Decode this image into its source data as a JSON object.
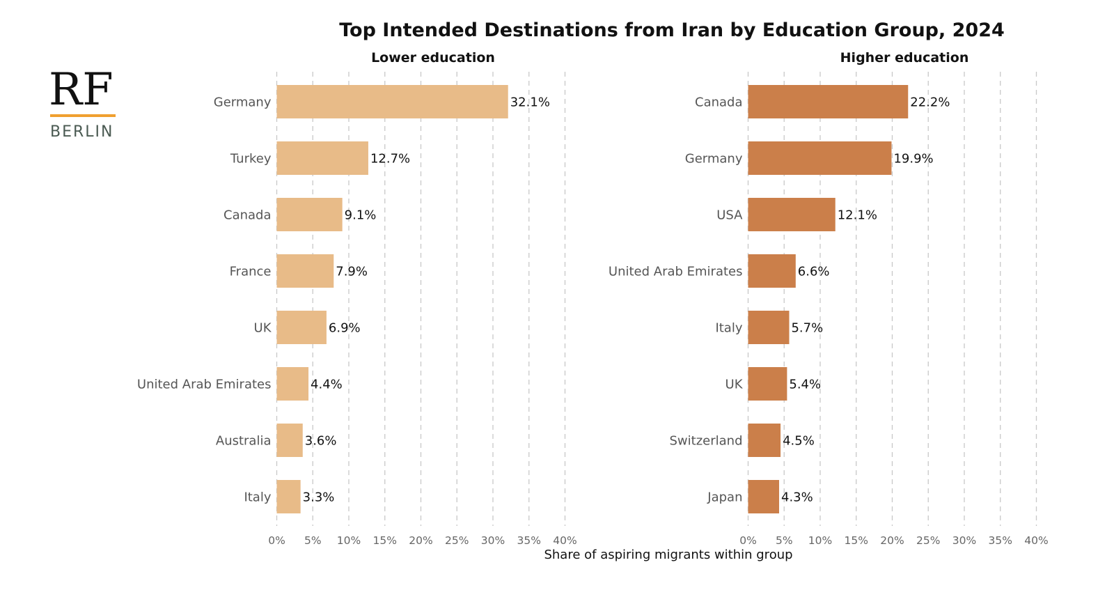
{
  "logo": {
    "text_top": "RF",
    "text_bottom": "BERLIN",
    "accent_color": "#f0a030"
  },
  "chart_data": {
    "type": "bar",
    "orientation": "horizontal",
    "title": "Top Intended Destinations from Iran by Education Group, 2024",
    "xlabel": "Share of aspiring migrants within group",
    "xlim": [
      0,
      40
    ],
    "xticks": [
      "0%",
      "5%",
      "10%",
      "15%",
      "20%",
      "25%",
      "30%",
      "35%",
      "40%"
    ],
    "xtick_values": [
      0,
      5,
      10,
      15,
      20,
      25,
      30,
      35,
      40
    ],
    "grid": "vertical dashed",
    "panels": [
      {
        "name": "Lower education",
        "color": "#e8bb88",
        "categories": [
          "Germany",
          "Turkey",
          "Canada",
          "France",
          "UK",
          "United Arab Emirates",
          "Australia",
          "Italy"
        ],
        "values": [
          32.1,
          12.7,
          9.1,
          7.9,
          6.9,
          4.4,
          3.6,
          3.3
        ],
        "labels": [
          "32.1%",
          "12.7%",
          "9.1%",
          "7.9%",
          "6.9%",
          "4.4%",
          "3.6%",
          "3.3%"
        ]
      },
      {
        "name": "Higher education",
        "color": "#cb7f4a",
        "categories": [
          "Canada",
          "Germany",
          "USA",
          "United Arab Emirates",
          "Italy",
          "UK",
          "Switzerland",
          "Japan"
        ],
        "values": [
          22.2,
          19.9,
          12.1,
          6.6,
          5.7,
          5.4,
          4.5,
          4.3
        ],
        "labels": [
          "22.2%",
          "19.9%",
          "12.1%",
          "6.6%",
          "5.7%",
          "5.4%",
          "4.5%",
          "4.3%"
        ]
      }
    ]
  }
}
